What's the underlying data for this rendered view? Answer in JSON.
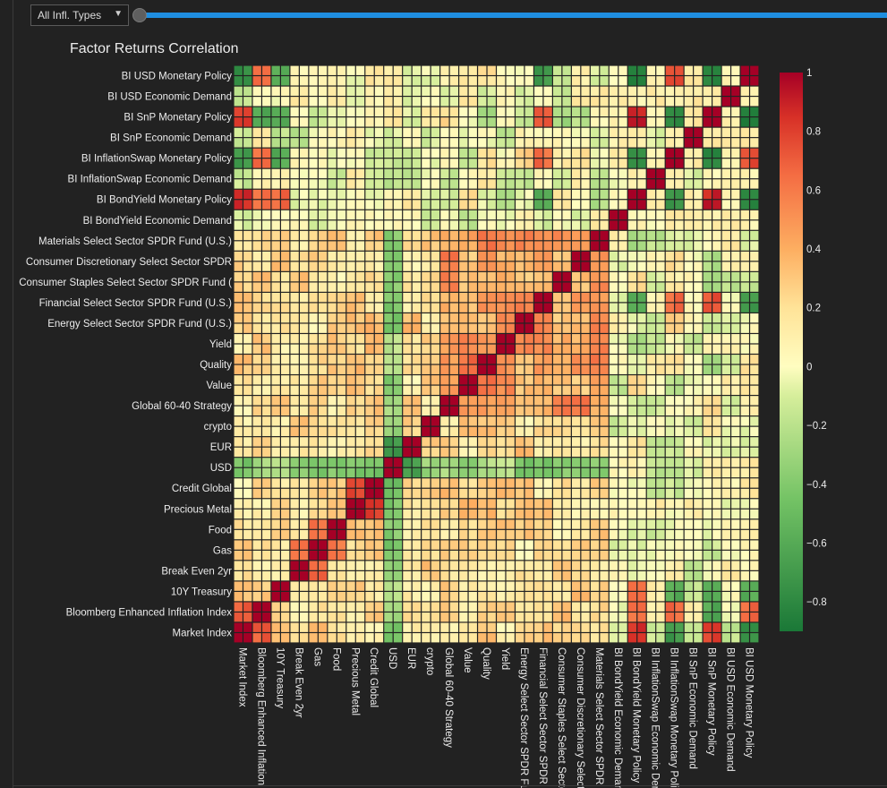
{
  "controls": {
    "type_filter": {
      "selected": "All Infl. Types"
    }
  },
  "chart_data": {
    "type": "heatmap",
    "title": "Factor Returns Correlation",
    "rows_top_to_bottom": [
      "BI USD Monetary Policy",
      "BI USD Economic Demand",
      "BI SnP Monetary Policy",
      "BI SnP Economic Demand",
      "BI InflationSwap Monetary Policy",
      "BI InflationSwap Economic Demand",
      "BI BondYield Monetary Policy",
      "BI BondYield Economic Demand",
      "Materials Select Sector SPDR Fund (U.S.)",
      "Consumer Discretionary Select Sector SPDR",
      "Consumer Staples Select Sector SPDR Fund (",
      "Financial Select Sector SPDR Fund (U.S.)",
      "Energy Select Sector SPDR Fund (U.S.)",
      "Yield",
      "Quality",
      "Value",
      "Global 60-40 Strategy",
      "crypto",
      "EUR",
      "USD",
      "Credit Global",
      "Precious Metal",
      "Food",
      "Gas",
      "Break Even 2yr",
      "10Y Treasury",
      "Bloomberg Enhanced Inflation Index",
      "Market Index"
    ],
    "columns_left_to_right": [
      "Market Index",
      "Bloomberg Enhanced Inflation",
      "10Y Treasury",
      "Break Even 2yr",
      "Gas",
      "Food",
      "Precious Metal",
      "Credit Global",
      "USD",
      "EUR",
      "crypto",
      "Global 60-40 Strategy",
      "Value",
      "Quality",
      "Yield",
      "Energy Select Sector SPDR Fu",
      "Financial Select Sector SPDR Fu",
      "Consumer Staples Select Sector",
      "Consumer Discretionary Select",
      "Materials Select Sector SPDR Fu",
      "BI BondYield Economic Demand",
      "BI BondYield Monetary Policy",
      "BI InflationSwap Economic Dem",
      "BI InflationSwap Monetary Polic",
      "BI SnP Economic Demand",
      "BI SnP Monetary Policy",
      "BI USD Economic Demand",
      "BI USD Monetary Policy"
    ],
    "colorscale": {
      "min": -0.9,
      "max": 1,
      "ticks": [
        "1",
        "0.8",
        "0.6",
        "0.4",
        "0.2",
        "0",
        "−0.2",
        "−0.4",
        "−0.6",
        "−0.8"
      ],
      "tick_values": [
        1,
        0.8,
        0.6,
        0.4,
        0.2,
        0,
        -0.2,
        -0.4,
        -0.6,
        -0.8
      ],
      "stops": [
        {
          "v": -0.9,
          "color": "#1a7837"
        },
        {
          "v": -0.45,
          "color": "#74c365"
        },
        {
          "v": -0.1,
          "color": "#d6ee9b"
        },
        {
          "v": 0,
          "color": "#fffdc0"
        },
        {
          "v": 0.2,
          "color": "#ffe398"
        },
        {
          "v": 0.4,
          "color": "#fdae61"
        },
        {
          "v": 0.65,
          "color": "#f46d43"
        },
        {
          "v": 0.85,
          "color": "#d73027"
        },
        {
          "v": 1,
          "color": "#a50026"
        }
      ]
    },
    "diagonal_value": 1,
    "approx_correlations": [
      {
        "a": "Precious Metal",
        "b": "Credit Global",
        "value": 0.8
      },
      {
        "a": "Gas",
        "b": "Break Even 2yr",
        "value": 0.65
      },
      {
        "a": "Gas",
        "b": "Food",
        "value": 0.6
      },
      {
        "a": "Market Index",
        "b": "Bloomberg Enhanced Inflation Index",
        "value": 0.7
      },
      {
        "a": "USD",
        "b": "EUR",
        "value": -0.7
      },
      {
        "a": "USD",
        "b": "Credit Global",
        "value": -0.45
      },
      {
        "a": "Yield",
        "b": "Value",
        "value": 0.55
      },
      {
        "a": "Yield",
        "b": "Quality",
        "value": 0.5
      },
      {
        "a": "Quality",
        "b": "Value",
        "value": 0.65
      },
      {
        "a": "Energy Select Sector SPDR Fund (U.S.)",
        "b": "Materials Select Sector SPDR Fund (U.S.)",
        "value": 0.55
      },
      {
        "a": "Financial Select Sector SPDR Fund (U.S.)",
        "b": "Consumer Discretionary Select Sector SPDR",
        "value": 0.5
      },
      {
        "a": "Global 60-40 Strategy",
        "b": "Value",
        "value": 0.45
      },
      {
        "a": "BI USD Monetary Policy",
        "b": "Market Index",
        "value": -0.75
      },
      {
        "a": "BI SnP Monetary Policy",
        "b": "Market Index",
        "value": 0.8
      },
      {
        "a": "BI InflationSwap Monetary Policy",
        "b": "Market Index",
        "value": -0.7
      },
      {
        "a": "BI BondYield Monetary Policy",
        "b": "Market Index",
        "value": 0.85
      },
      {
        "a": "BI BondYield Monetary Policy",
        "b": "BI SnP Monetary Policy",
        "value": 0.9
      },
      {
        "a": "BI USD Monetary Policy",
        "b": "BI SnP Monetary Policy",
        "value": -0.85
      },
      {
        "a": "BI InflationSwap Monetary Policy",
        "b": "BI SnP Monetary Policy",
        "value": -0.8
      },
      {
        "a": "BI BondYield Monetary Policy",
        "b": "BI USD Monetary Policy",
        "value": -0.85
      },
      {
        "a": "BI InflationSwap Monetary Policy",
        "b": "BI USD Monetary Policy",
        "value": 0.75
      },
      {
        "a": "BI BondYield Monetary Policy",
        "b": "BI InflationSwap Monetary Policy",
        "value": -0.75
      },
      {
        "a": "BI BondYield Monetary Policy",
        "b": "10Y Treasury",
        "value": 0.65
      },
      {
        "a": "BI SnP Monetary Policy",
        "b": "Financial Select Sector SPDR Fund (U.S.)",
        "value": 0.75
      },
      {
        "a": "BI USD Monetary Policy",
        "b": "Financial Select Sector SPDR Fund (U.S.)",
        "value": -0.7
      }
    ]
  }
}
